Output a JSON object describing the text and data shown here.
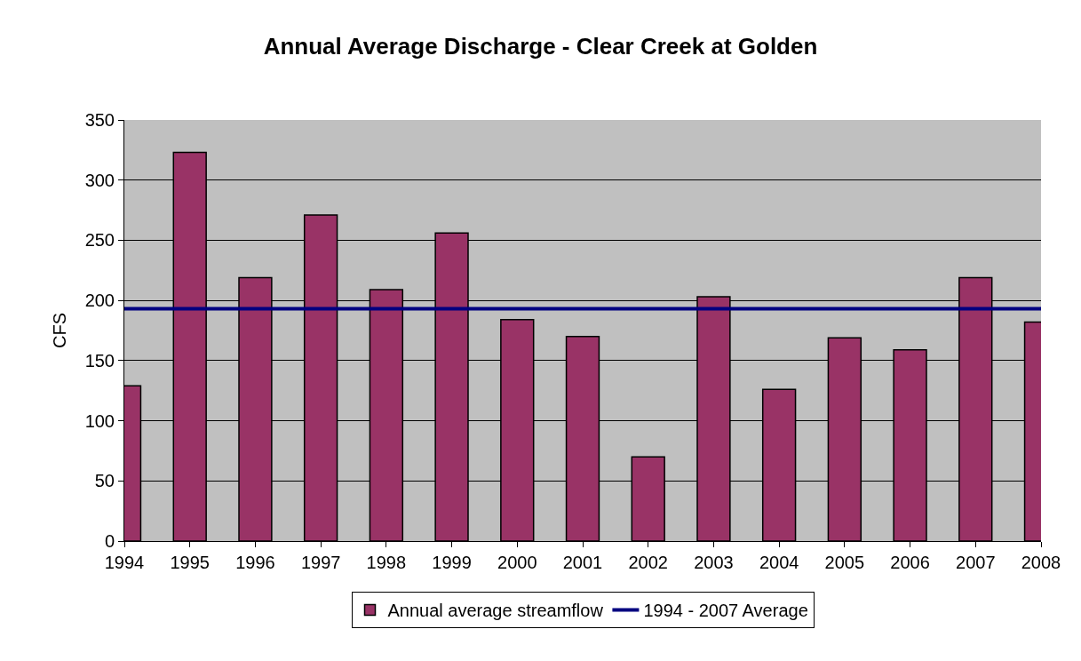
{
  "chart_data": {
    "type": "bar",
    "title": "Annual Average Discharge - Clear Creek at Golden",
    "ylabel": "CFS",
    "x": [
      1994,
      1995,
      1996,
      1997,
      1998,
      1999,
      2000,
      2001,
      2002,
      2003,
      2004,
      2005,
      2006,
      2007,
      2008
    ],
    "series": [
      {
        "name": "Annual average streamflow",
        "color": "#993366",
        "values": [
          129,
          323,
          219,
          271,
          209,
          256,
          184,
          170,
          70,
          203,
          126,
          169,
          159,
          219,
          182
        ]
      },
      {
        "name": "1994 - 2007 Average",
        "type": "line",
        "color": "#000080",
        "x": [
          1994,
          2008
        ],
        "values": [
          193,
          193
        ]
      }
    ],
    "xlim": [
      1994,
      2008
    ],
    "xticks": [
      1994,
      1995,
      1996,
      1997,
      1998,
      1999,
      2000,
      2001,
      2002,
      2003,
      2004,
      2005,
      2006,
      2007,
      2008
    ],
    "ylim": [
      0,
      350
    ],
    "yticks": [
      0,
      50,
      100,
      150,
      200,
      250,
      300,
      350
    ],
    "grid": "y",
    "legend": "bottom"
  }
}
